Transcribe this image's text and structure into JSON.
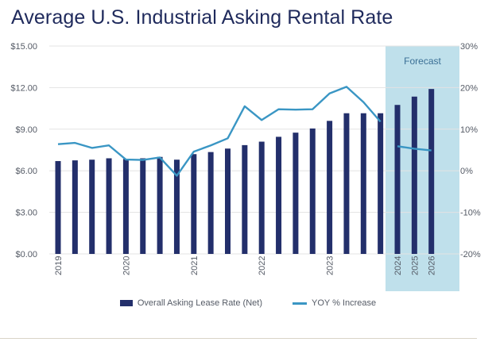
{
  "chart_data": {
    "type": "bar",
    "title": "Average U.S. Industrial Asking Rental Rate",
    "forecast_label": "Forecast",
    "x_tick_labels": [
      "2019",
      "2020",
      "2021",
      "2022",
      "2023",
      "2024",
      "2025",
      "2026"
    ],
    "y_left": {
      "ticks": [
        "$0.00",
        "$3.00",
        "$6.00",
        "$9.00",
        "$12.00",
        "$15.00"
      ],
      "ylim": [
        0,
        15
      ]
    },
    "y_right": {
      "ticks": [
        "-20%",
        "-10%",
        "0%",
        "10%",
        "20%",
        "30%"
      ],
      "ylim": [
        -20,
        30
      ]
    },
    "series": [
      {
        "name": "Overall Asking Lease Rate (Net)",
        "type": "bar",
        "color": "#232f6b",
        "values": [
          6.7,
          6.75,
          6.8,
          6.9,
          6.85,
          6.9,
          7.0,
          6.8,
          7.2,
          7.35,
          7.6,
          7.85,
          8.1,
          8.45,
          8.75,
          9.05,
          9.6,
          10.15,
          10.15,
          10.15,
          10.75,
          11.35,
          11.9
        ]
      },
      {
        "name": "YOY % Increase",
        "type": "line",
        "color": "#3a96c4",
        "values": [
          6.4,
          6.7,
          5.5,
          6.1,
          2.7,
          2.6,
          3.2,
          -1.2,
          4.6,
          6.1,
          7.8,
          15.5,
          12.2,
          14.8,
          14.7,
          14.8,
          18.6,
          20.2,
          16.5,
          11.8
        ],
        "forecast_values": [
          5.9,
          5.3,
          4.9
        ]
      }
    ],
    "grid": true,
    "legend_position": "bottom"
  }
}
